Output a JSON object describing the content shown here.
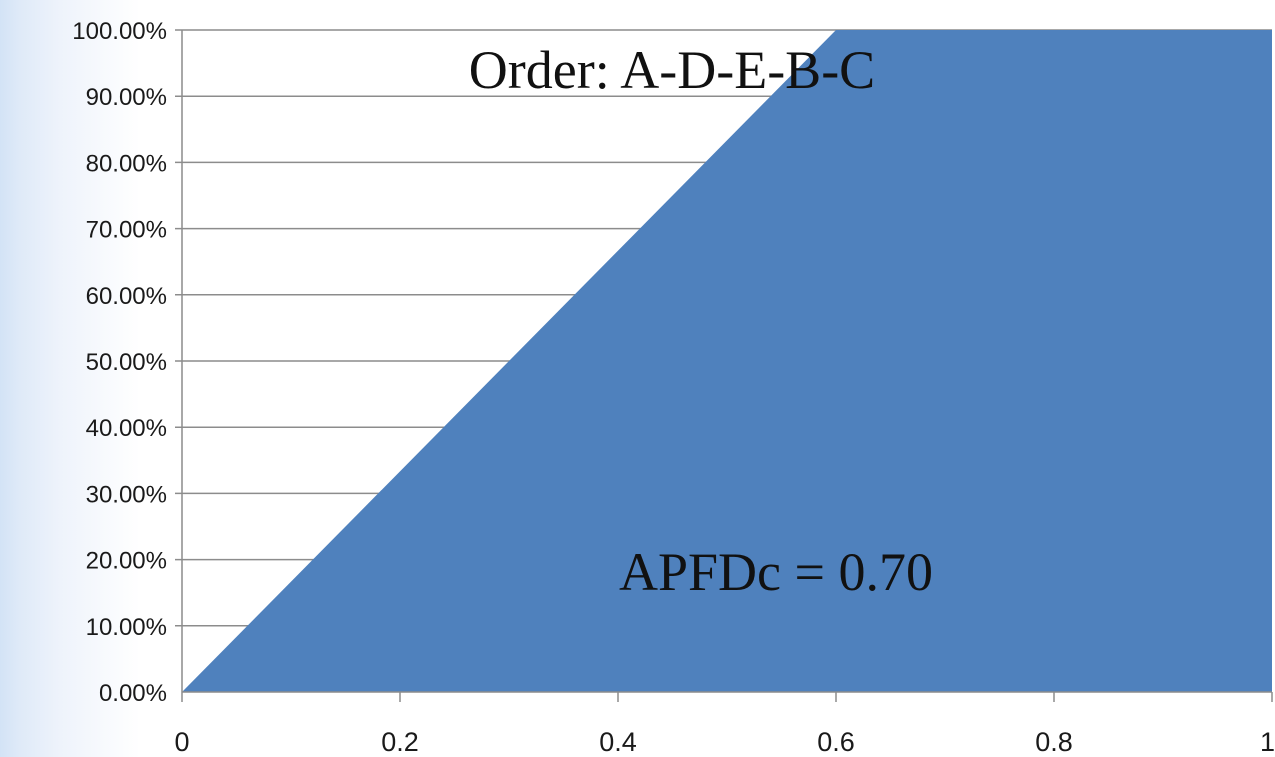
{
  "chart_data": {
    "type": "area",
    "title": "Order: A-D-E-B-C",
    "xlabel": "",
    "ylabel": "",
    "x": [
      0,
      0.6,
      1
    ],
    "values": [
      0,
      100,
      100
    ],
    "xlim": [
      0,
      1
    ],
    "ylim": [
      0,
      100
    ],
    "x_ticks": [
      "0",
      "0.2",
      "0.4",
      "0.6",
      "0.8",
      "1"
    ],
    "y_ticks": [
      "0.00%",
      "10.00%",
      "20.00%",
      "30.00%",
      "40.00%",
      "50.00%",
      "60.00%",
      "70.00%",
      "80.00%",
      "90.00%",
      "100.00%"
    ],
    "grid": "horizontal",
    "annotation": "APFDc = 0.70",
    "colors": {
      "area": "#4f81bd",
      "grid": "#8c8c8c",
      "axis": "#8c8c8c"
    }
  }
}
